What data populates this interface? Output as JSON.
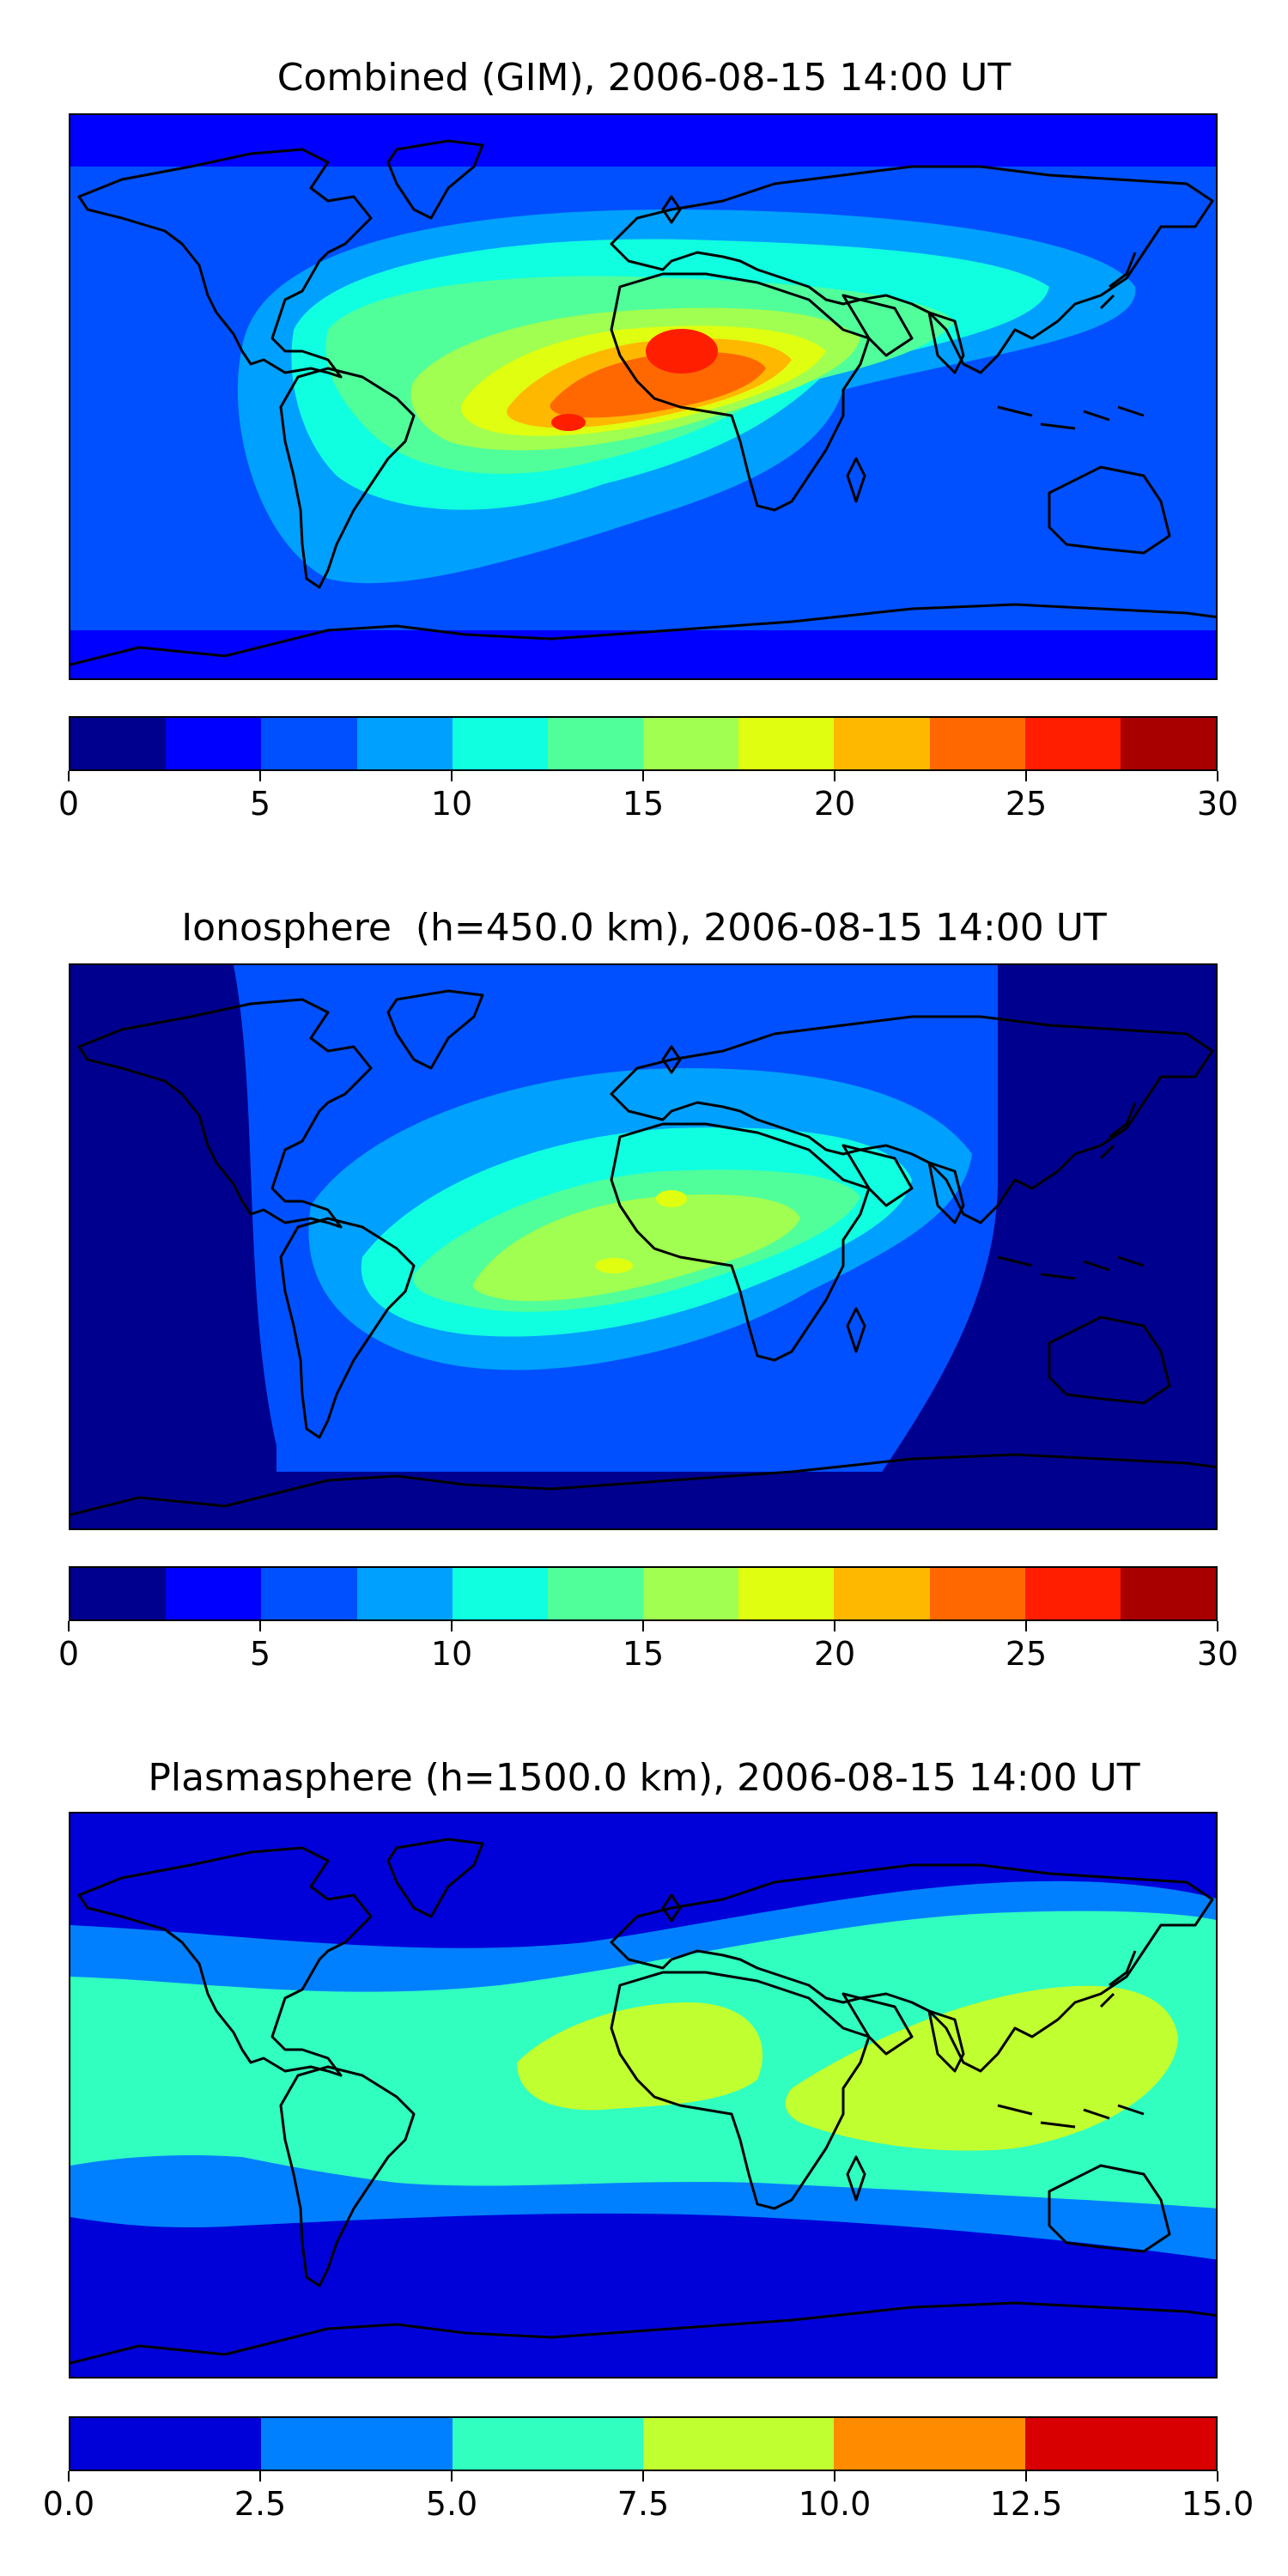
{
  "panels": [
    {
      "title": "Combined (GIM), 2006-08-15 14:00 UT",
      "colors": [
        "#00008f",
        "#0000ff",
        "#0050ff",
        "#00a0ff",
        "#10ffe0",
        "#50ff9a",
        "#a0ff50",
        "#e0ff10",
        "#ffb800",
        "#ff6800",
        "#ff1e00",
        "#a80000"
      ],
      "ticks": [
        "0",
        "5",
        "10",
        "15",
        "20",
        "25",
        "30"
      ],
      "fill_levels": {
        "background": 2,
        "ring1": 3,
        "ring2": 4,
        "ring3": 5,
        "ring4": 6,
        "ring5": 7,
        "ring6": 8,
        "ring7": 9,
        "peak": 10
      },
      "polar_level": 1
    },
    {
      "title": "Ionosphere  (h=450.0 km), 2006-08-15 14:00 UT",
      "colors": [
        "#00008f",
        "#0000ff",
        "#0050ff",
        "#00a0ff",
        "#10ffe0",
        "#50ff9a",
        "#a0ff50",
        "#e0ff10",
        "#ffb800",
        "#ff6800",
        "#ff1e00",
        "#a80000"
      ],
      "ticks": [
        "0",
        "5",
        "10",
        "15",
        "20",
        "25",
        "30"
      ],
      "fill_levels": {
        "background": 2,
        "ring1": 3,
        "ring2": 4,
        "ring3": 5,
        "ring4": 6,
        "peak": 7
      },
      "polar_level": 0
    },
    {
      "title": "Plasmasphere (h=1500.0 km), 2006-08-15 14:00 UT",
      "colors": [
        "#0000d8",
        "#0080ff",
        "#30ffc0",
        "#c0ff30",
        "#ff8c00",
        "#d80000"
      ],
      "ticks": [
        "0.0",
        "2.5",
        "5.0",
        "7.5",
        "10.0",
        "12.5",
        "15.0"
      ],
      "fill_levels": {
        "background": 0,
        "band1": 1,
        "band2": 2,
        "peak": 3
      },
      "polar_level": 0
    }
  ]
}
